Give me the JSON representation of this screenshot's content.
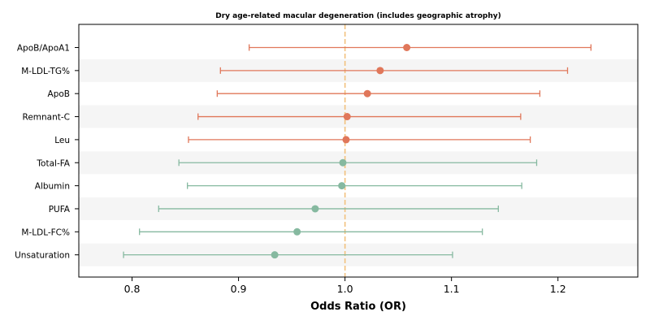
{
  "chart_data": {
    "type": "forest",
    "title": "Dry age-related macular degeneration (includes geographic atrophy)",
    "xlabel": "Odds Ratio (OR)",
    "xlim": [
      0.75,
      1.275
    ],
    "xticks": [
      0.8,
      0.9,
      1.0,
      1.1,
      1.2
    ],
    "xtick_labels": [
      "0.8",
      "0.9",
      "1.0",
      "1.1",
      "1.2"
    ],
    "reference_line": 1.0,
    "reference_color": "#f2c17e",
    "colors": {
      "risk": "#e0775a",
      "protective": "#86b9a0",
      "band": "#f5f5f5"
    },
    "rows": [
      {
        "label": "ApoB/ApoA1",
        "or": 1.058,
        "lower": 0.91,
        "upper": 1.231,
        "group": "risk"
      },
      {
        "label": "M-LDL-TG%",
        "or": 1.033,
        "lower": 0.883,
        "upper": 1.209,
        "group": "risk"
      },
      {
        "label": "ApoB",
        "or": 1.021,
        "lower": 0.88,
        "upper": 1.183,
        "group": "risk"
      },
      {
        "label": "Remnant-C",
        "or": 1.002,
        "lower": 0.862,
        "upper": 1.165,
        "group": "risk"
      },
      {
        "label": "Leu",
        "or": 1.001,
        "lower": 0.853,
        "upper": 1.174,
        "group": "risk"
      },
      {
        "label": "Total-FA",
        "or": 0.998,
        "lower": 0.844,
        "upper": 1.18,
        "group": "protective"
      },
      {
        "label": "Albumin",
        "or": 0.997,
        "lower": 0.852,
        "upper": 1.166,
        "group": "protective"
      },
      {
        "label": "PUFA",
        "or": 0.972,
        "lower": 0.825,
        "upper": 1.144,
        "group": "protective"
      },
      {
        "label": "M-LDL-FC%",
        "or": 0.955,
        "lower": 0.807,
        "upper": 1.129,
        "group": "protective"
      },
      {
        "label": "Unsaturation",
        "or": 0.934,
        "lower": 0.792,
        "upper": 1.101,
        "group": "protective"
      }
    ]
  }
}
